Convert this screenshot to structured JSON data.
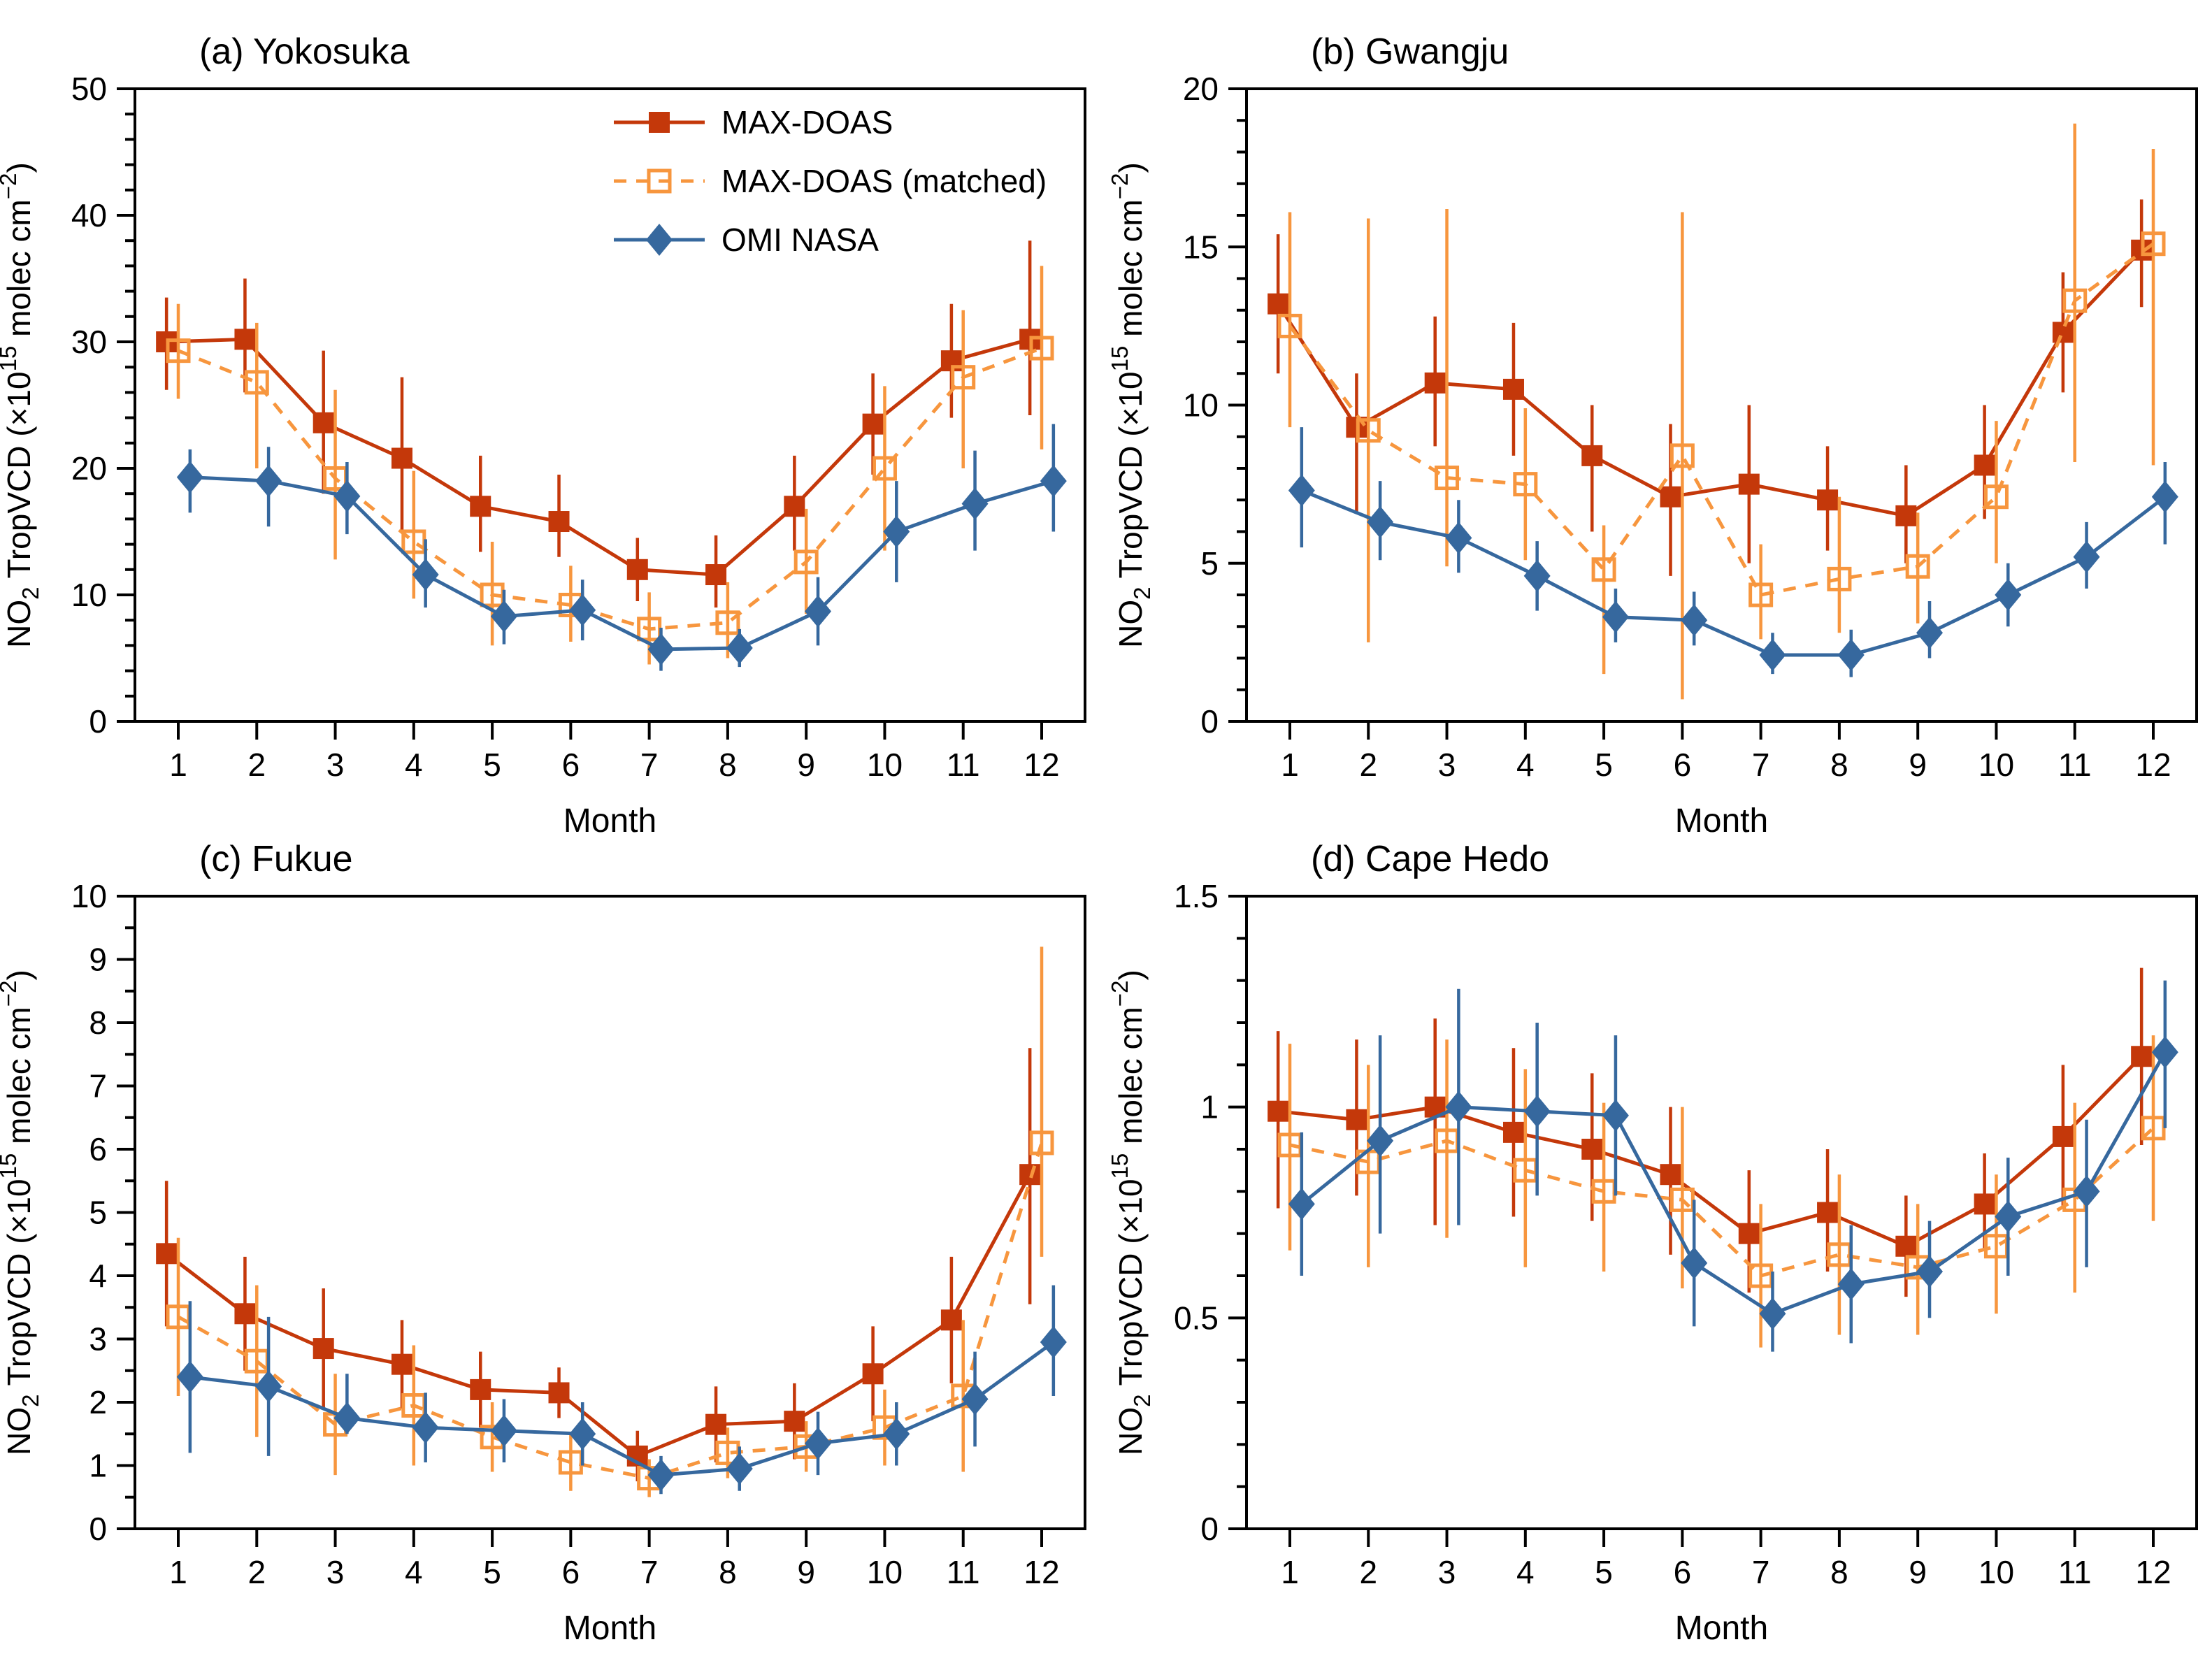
{
  "colors": {
    "max_doas": "#c4380a",
    "max_doas_matched": "#f7963e",
    "omi_nasa": "#36689e",
    "frame": "#000000",
    "background": "#ffffff",
    "text": "#000000"
  },
  "legend": {
    "items": [
      {
        "key": "max_doas",
        "label": "MAX-DOAS"
      },
      {
        "key": "max_doas_matched",
        "label": "MAX-DOAS (matched)"
      },
      {
        "key": "omi_nasa",
        "label": "OMI NASA"
      }
    ]
  },
  "axis": {
    "xlabel": "Month",
    "xtick_labels": [
      "1",
      "2",
      "3",
      "4",
      "5",
      "6",
      "7",
      "8",
      "9",
      "10",
      "11",
      "12"
    ],
    "ylabel_parts": [
      {
        "text": "NO",
        "mode": "normal"
      },
      {
        "text": "2",
        "mode": "sub"
      },
      {
        "text": " TropVCD (×10",
        "mode": "normal"
      },
      {
        "text": "15",
        "mode": "sup"
      },
      {
        "text": " molec cm",
        "mode": "normal"
      },
      {
        "text": "−2",
        "mode": "sup"
      },
      {
        "text": ")",
        "mode": "normal"
      }
    ]
  },
  "chart_data": [
    {
      "id": "a",
      "type": "line",
      "title": "(a) Yokosuka",
      "xlabel": "Month",
      "x": [
        1,
        2,
        3,
        4,
        5,
        6,
        7,
        8,
        9,
        10,
        11,
        12
      ],
      "ylim": [
        0,
        50
      ],
      "ytick_major": 10,
      "ytick_minor": 2,
      "legend_visible": true,
      "series": [
        {
          "key": "max_doas",
          "name": "MAX-DOAS",
          "line": "solid",
          "marker": "filled-square",
          "x_offset": -0.15,
          "values": [
            30.0,
            30.2,
            23.6,
            20.8,
            17.0,
            15.8,
            12.0,
            11.6,
            17.0,
            23.5,
            28.5,
            30.2
          ],
          "err_lo": [
            26.2,
            26.0,
            18.0,
            15.0,
            13.4,
            13.0,
            9.5,
            9.0,
            13.5,
            19.5,
            24.0,
            24.2
          ],
          "err_hi": [
            33.5,
            35.0,
            29.3,
            27.2,
            21.0,
            19.5,
            14.5,
            14.7,
            21.0,
            27.5,
            33.0,
            38.0
          ]
        },
        {
          "key": "max_doas_matched",
          "name": "MAX-DOAS (matched)",
          "line": "dashed",
          "marker": "open-square",
          "x_offset": 0,
          "values": [
            29.3,
            26.8,
            19.2,
            14.2,
            10.0,
            9.2,
            7.3,
            7.8,
            12.6,
            20.0,
            27.2,
            29.5
          ],
          "err_lo": [
            25.5,
            20.0,
            12.8,
            9.7,
            6.0,
            6.3,
            4.5,
            5.0,
            8.5,
            13.5,
            20.0,
            21.5
          ],
          "err_hi": [
            33.0,
            31.5,
            26.2,
            19.8,
            14.2,
            12.3,
            10.2,
            11.0,
            16.8,
            26.5,
            32.5,
            36.0
          ]
        },
        {
          "key": "omi_nasa",
          "name": "OMI NASA",
          "line": "solid",
          "marker": "filled-diamond",
          "x_offset": 0.15,
          "values": [
            19.3,
            19.0,
            17.8,
            11.6,
            8.3,
            8.8,
            5.7,
            5.8,
            8.7,
            15.0,
            17.2,
            19.0
          ],
          "err_lo": [
            16.5,
            15.4,
            14.8,
            9.0,
            6.1,
            6.4,
            4.0,
            4.3,
            6.0,
            11.0,
            13.5,
            15.0
          ],
          "err_hi": [
            21.5,
            21.7,
            20.5,
            14.4,
            10.4,
            11.2,
            7.4,
            7.3,
            11.4,
            19.0,
            21.4,
            23.5
          ]
        }
      ]
    },
    {
      "id": "b",
      "type": "line",
      "title": "(b) Gwangju",
      "xlabel": "Month",
      "x": [
        1,
        2,
        3,
        4,
        5,
        6,
        7,
        8,
        9,
        10,
        11,
        12
      ],
      "ylim": [
        0,
        20
      ],
      "ytick_major": 5,
      "ytick_minor": 1,
      "legend_visible": false,
      "series": [
        {
          "key": "max_doas",
          "name": "MAX-DOAS",
          "line": "solid",
          "marker": "filled-square",
          "x_offset": -0.15,
          "values": [
            13.2,
            9.3,
            10.7,
            10.5,
            8.4,
            7.1,
            7.5,
            7.0,
            6.5,
            8.1,
            12.3,
            14.9
          ],
          "err_lo": [
            11.0,
            6.6,
            8.7,
            8.4,
            6.0,
            4.6,
            5.0,
            5.4,
            5.0,
            6.4,
            10.4,
            13.1
          ],
          "err_hi": [
            15.4,
            11.0,
            12.8,
            12.6,
            10.0,
            9.4,
            10.0,
            8.7,
            8.1,
            10.0,
            14.2,
            16.5
          ]
        },
        {
          "key": "max_doas_matched",
          "name": "MAX-DOAS (matched)",
          "line": "dashed",
          "marker": "open-square",
          "x_offset": 0,
          "values": [
            12.5,
            9.2,
            7.7,
            7.5,
            4.8,
            8.4,
            4.0,
            4.5,
            4.9,
            7.1,
            13.3,
            15.1
          ],
          "err_lo": [
            9.3,
            2.5,
            4.9,
            5.1,
            1.5,
            0.7,
            2.6,
            2.8,
            3.1,
            5.0,
            8.2,
            8.1
          ],
          "err_hi": [
            16.1,
            15.9,
            16.2,
            9.9,
            6.2,
            16.1,
            5.6,
            7.1,
            6.6,
            9.5,
            18.9,
            18.1
          ]
        },
        {
          "key": "omi_nasa",
          "name": "OMI NASA",
          "line": "solid",
          "marker": "filled-diamond",
          "x_offset": 0.15,
          "values": [
            7.3,
            6.3,
            5.8,
            4.6,
            3.3,
            3.2,
            2.1,
            2.1,
            2.8,
            4.0,
            5.2,
            7.1
          ],
          "err_lo": [
            5.5,
            5.1,
            4.7,
            3.5,
            2.5,
            2.4,
            1.5,
            1.4,
            2.0,
            3.0,
            4.2,
            5.6
          ],
          "err_hi": [
            9.3,
            7.6,
            7.0,
            5.7,
            4.2,
            4.1,
            2.8,
            2.9,
            3.8,
            5.0,
            6.3,
            8.2
          ]
        }
      ]
    },
    {
      "id": "c",
      "type": "line",
      "title": "(c) Fukue",
      "xlabel": "Month",
      "x": [
        1,
        2,
        3,
        4,
        5,
        6,
        7,
        8,
        9,
        10,
        11,
        12
      ],
      "ylim": [
        0,
        10
      ],
      "ytick_major": 1,
      "ytick_minor": 0.5,
      "legend_visible": false,
      "series": [
        {
          "key": "max_doas",
          "name": "MAX-DOAS",
          "line": "solid",
          "marker": "filled-square",
          "x_offset": -0.15,
          "values": [
            4.35,
            3.4,
            2.85,
            2.6,
            2.2,
            2.15,
            1.15,
            1.65,
            1.7,
            2.45,
            3.3,
            5.6
          ],
          "err_lo": [
            3.2,
            2.5,
            1.9,
            1.9,
            1.6,
            1.75,
            0.75,
            1.05,
            1.1,
            1.7,
            2.3,
            3.55
          ],
          "err_hi": [
            5.5,
            4.3,
            3.8,
            3.3,
            2.8,
            2.55,
            1.55,
            2.25,
            2.3,
            3.2,
            4.3,
            7.6
          ]
        },
        {
          "key": "max_doas_matched",
          "name": "MAX-DOAS (matched)",
          "line": "dashed",
          "marker": "open-square",
          "x_offset": 0,
          "values": [
            3.35,
            2.65,
            1.65,
            1.95,
            1.45,
            1.05,
            0.8,
            1.2,
            1.3,
            1.6,
            2.1,
            6.1
          ],
          "err_lo": [
            2.1,
            1.45,
            0.85,
            1.0,
            0.9,
            0.6,
            0.5,
            0.8,
            0.9,
            1.0,
            0.9,
            4.3
          ],
          "err_hi": [
            4.6,
            3.85,
            2.45,
            2.9,
            2.0,
            1.5,
            1.1,
            1.6,
            1.7,
            2.2,
            3.3,
            9.2
          ]
        },
        {
          "key": "omi_nasa",
          "name": "OMI NASA",
          "line": "solid",
          "marker": "filled-diamond",
          "x_offset": 0.15,
          "values": [
            2.4,
            2.25,
            1.75,
            1.6,
            1.55,
            1.5,
            0.85,
            0.95,
            1.35,
            1.5,
            2.05,
            2.95
          ],
          "err_lo": [
            1.2,
            1.15,
            1.5,
            1.05,
            1.05,
            1.0,
            0.55,
            0.6,
            0.85,
            1.0,
            1.3,
            2.1
          ],
          "err_hi": [
            3.6,
            3.35,
            2.45,
            2.15,
            2.05,
            2.0,
            1.15,
            1.3,
            1.85,
            2.0,
            2.8,
            3.85
          ]
        }
      ]
    },
    {
      "id": "d",
      "type": "line",
      "title": "(d) Cape Hedo",
      "xlabel": "Month",
      "x": [
        1,
        2,
        3,
        4,
        5,
        6,
        7,
        8,
        9,
        10,
        11,
        12
      ],
      "ylim": [
        0,
        1.5
      ],
      "ytick_major": 0.5,
      "ytick_minor": 0.1,
      "legend_visible": false,
      "series": [
        {
          "key": "max_doas",
          "name": "MAX-DOAS",
          "line": "solid",
          "marker": "filled-square",
          "x_offset": -0.15,
          "values": [
            0.99,
            0.97,
            1.0,
            0.94,
            0.9,
            0.84,
            0.7,
            0.75,
            0.67,
            0.77,
            0.93,
            1.12
          ],
          "err_lo": [
            0.76,
            0.79,
            0.72,
            0.74,
            0.73,
            0.65,
            0.56,
            0.61,
            0.55,
            0.66,
            0.76,
            0.91
          ],
          "err_hi": [
            1.18,
            1.16,
            1.21,
            1.14,
            1.08,
            1.0,
            0.85,
            0.9,
            0.79,
            0.89,
            1.1,
            1.33
          ]
        },
        {
          "key": "max_doas_matched",
          "name": "MAX-DOAS (matched)",
          "line": "dashed",
          "marker": "open-square",
          "x_offset": 0,
          "values": [
            0.91,
            0.87,
            0.92,
            0.85,
            0.8,
            0.78,
            0.6,
            0.65,
            0.62,
            0.67,
            0.78,
            0.95
          ],
          "err_lo": [
            0.66,
            0.62,
            0.69,
            0.62,
            0.61,
            0.57,
            0.43,
            0.46,
            0.46,
            0.51,
            0.56,
            0.73
          ],
          "err_hi": [
            1.15,
            1.1,
            1.16,
            1.09,
            1.01,
            1.0,
            0.77,
            0.84,
            0.77,
            0.84,
            1.01,
            1.17
          ]
        },
        {
          "key": "omi_nasa",
          "name": "OMI NASA",
          "line": "solid",
          "marker": "filled-diamond",
          "x_offset": 0.15,
          "values": [
            0.77,
            0.92,
            1.0,
            0.99,
            0.98,
            0.63,
            0.51,
            0.58,
            0.61,
            0.74,
            0.8,
            1.13
          ],
          "err_lo": [
            0.6,
            0.7,
            0.72,
            0.79,
            0.79,
            0.48,
            0.42,
            0.44,
            0.5,
            0.6,
            0.62,
            0.95
          ],
          "err_hi": [
            0.94,
            1.17,
            1.28,
            1.2,
            1.17,
            0.78,
            0.61,
            0.72,
            0.73,
            0.88,
            0.97,
            1.3
          ]
        }
      ]
    }
  ]
}
